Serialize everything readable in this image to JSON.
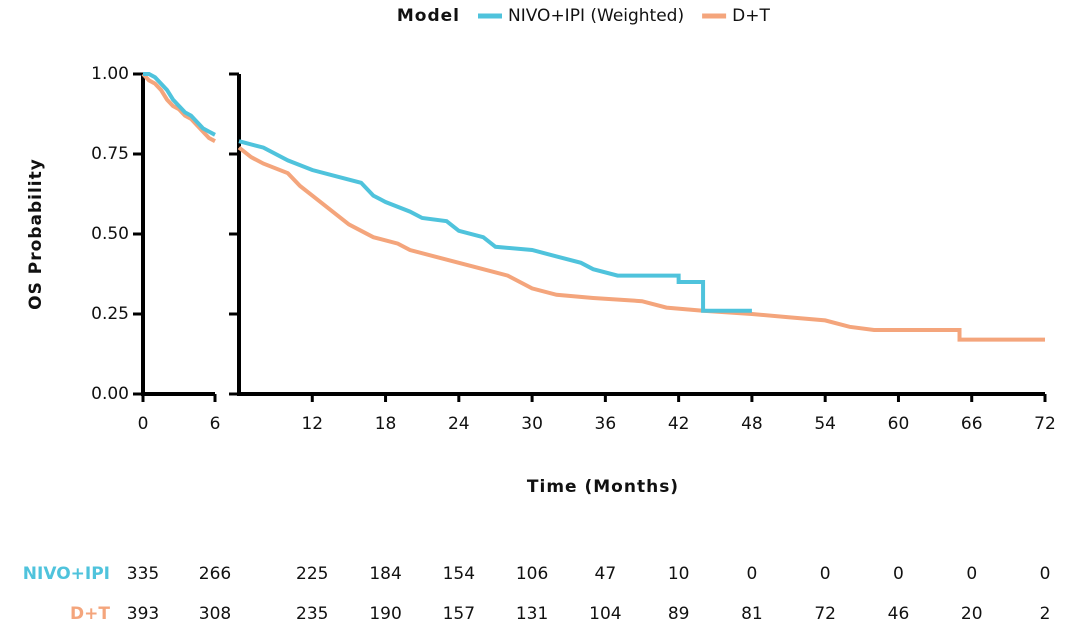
{
  "chart_data": [
    {
      "type": "line",
      "step": true,
      "legend_title": "Model",
      "y_label": "OS Probability",
      "xlim": [
        0,
        6
      ],
      "xticks": [
        0,
        6
      ],
      "ylim": [
        0,
        1
      ],
      "yticks": [
        {
          "value": 0,
          "label": "0.00"
        },
        0.25,
        {
          "value": 0.5,
          "label": "0.50"
        },
        0.75,
        {
          "value": 1,
          "label": "1.00"
        }
      ],
      "series": [
        {
          "name": "NIVO+IPI (Weighted)",
          "color": "#4fc3dc",
          "x": [
            0,
            0.5,
            1,
            1.5,
            2,
            2.5,
            3,
            3.5,
            4,
            4.5,
            5,
            5.5,
            6
          ],
          "values": [
            1.0,
            1.0,
            0.99,
            0.97,
            0.95,
            0.92,
            0.9,
            0.88,
            0.87,
            0.85,
            0.83,
            0.82,
            0.81
          ]
        },
        {
          "name": "D+T",
          "color": "#f4a57c",
          "x": [
            0,
            0.5,
            1,
            1.5,
            2,
            2.5,
            3,
            3.5,
            4,
            4.5,
            5,
            5.5,
            6
          ],
          "values": [
            1.0,
            0.98,
            0.97,
            0.95,
            0.92,
            0.9,
            0.89,
            0.87,
            0.86,
            0.84,
            0.82,
            0.8,
            0.79
          ]
        }
      ]
    },
    {
      "type": "line",
      "step": true,
      "x_label": "Time (Months)",
      "xlim": [
        6,
        72
      ],
      "xticks": [
        12,
        18,
        24,
        30,
        36,
        42,
        48,
        54,
        60,
        66,
        72
      ],
      "ylim": [
        0,
        1
      ],
      "series": [
        {
          "color": "#4fc3dc",
          "x": [
            6,
            8,
            10,
            12,
            14,
            16,
            17,
            18,
            20,
            21,
            23,
            24,
            26,
            27,
            30,
            32,
            34,
            35,
            37,
            42,
            42,
            44,
            44,
            48
          ],
          "values": [
            0.79,
            0.77,
            0.73,
            0.7,
            0.68,
            0.66,
            0.62,
            0.6,
            0.57,
            0.55,
            0.54,
            0.51,
            0.49,
            0.46,
            0.45,
            0.43,
            0.41,
            0.39,
            0.37,
            0.37,
            0.35,
            0.35,
            0.26,
            0.26
          ]
        },
        {
          "color": "#f4a57c",
          "x": [
            6,
            7,
            8,
            10,
            11,
            12,
            13,
            14,
            15,
            16,
            17,
            19,
            20,
            22,
            24,
            26,
            28,
            29,
            30,
            32,
            35,
            39,
            41,
            44,
            48,
            51,
            54,
            56,
            58,
            65,
            65,
            72
          ],
          "values": [
            0.77,
            0.74,
            0.72,
            0.69,
            0.65,
            0.62,
            0.59,
            0.56,
            0.53,
            0.51,
            0.49,
            0.47,
            0.45,
            0.43,
            0.41,
            0.39,
            0.37,
            0.35,
            0.33,
            0.31,
            0.3,
            0.29,
            0.27,
            0.26,
            0.25,
            0.24,
            0.23,
            0.21,
            0.2,
            0.2,
            0.17,
            0.17
          ]
        }
      ]
    }
  ],
  "risk_table": {
    "rows": [
      {
        "label": "NIVO+IPI",
        "color": "#4fc3dc",
        "values": [
          335,
          266,
          225,
          184,
          154,
          106,
          47,
          10,
          0,
          0,
          0,
          0,
          0
        ]
      },
      {
        "label": "D+T",
        "color": "#f4a57c",
        "values": [
          393,
          308,
          235,
          190,
          157,
          131,
          104,
          89,
          81,
          72,
          46,
          20,
          2
        ]
      }
    ]
  }
}
